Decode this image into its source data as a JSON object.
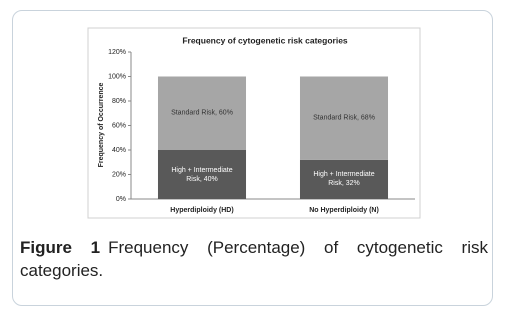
{
  "chart_data": {
    "type": "stacked-bar",
    "title": "Frequency of cytogenetic risk categories",
    "y_label": "Frequency of Occurrence",
    "categories": [
      "Hyperdiploidy (HD)",
      "No Hyperdiploidy (N)"
    ],
    "series": [
      {
        "name": "High + Intermediate Risk",
        "color": "#595959",
        "values": [
          40,
          32
        ],
        "value_labels": [
          "High + Intermediate Risk, 40%",
          "High + Intermediate Risk, 32%"
        ]
      },
      {
        "name": "Standard Risk",
        "color": "#a6a6a6",
        "values": [
          60,
          68
        ],
        "value_labels": [
          "Standard Risk, 60%",
          "Standard Risk, 68%"
        ]
      }
    ],
    "ylim": [
      0,
      120
    ],
    "yticks": [
      {
        "value": 0,
        "label": "0%"
      },
      {
        "value": 20,
        "label": "20%"
      },
      {
        "value": 40,
        "label": "40%"
      },
      {
        "value": 60,
        "label": "60%"
      },
      {
        "value": 80,
        "label": "80%"
      },
      {
        "value": 100,
        "label": "100%"
      },
      {
        "value": 120,
        "label": "120%"
      }
    ],
    "grid": false
  },
  "caption": {
    "label": "Figure 1",
    "text": "Frequency (Percentage) of cytogenetic risk categories."
  }
}
